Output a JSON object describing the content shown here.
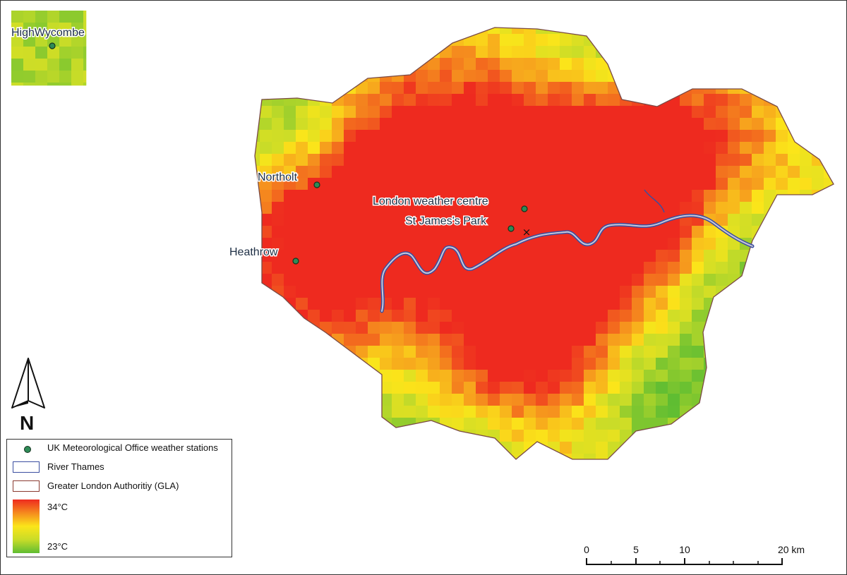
{
  "map": {
    "stations": [
      {
        "label": "HighWycombe"
      },
      {
        "label": "Northolt"
      },
      {
        "label": "Heathrow"
      },
      {
        "label": "London weather centre"
      },
      {
        "label": "St James's Park"
      }
    ],
    "marker_symbol": "×",
    "colors": {
      "hot": "#ee2a1f",
      "warm": "#f58a1e",
      "mid": "#fbe51a",
      "cool": "#5fbd32",
      "thames": "#3b4ea0",
      "gla": "#8a3a30",
      "station": "#2e8b57"
    }
  },
  "legend": {
    "stations_label": "UK Meteorological Office weather stations",
    "thames_label": "River Thames",
    "gla_label": "Greater London Authoritiy (GLA)",
    "temp_max": "34°C",
    "temp_min": "23°C"
  },
  "north_arrow": {
    "label": "N"
  },
  "scale_bar": {
    "ticks": [
      "0",
      "5",
      "10",
      "20 km"
    ]
  }
}
